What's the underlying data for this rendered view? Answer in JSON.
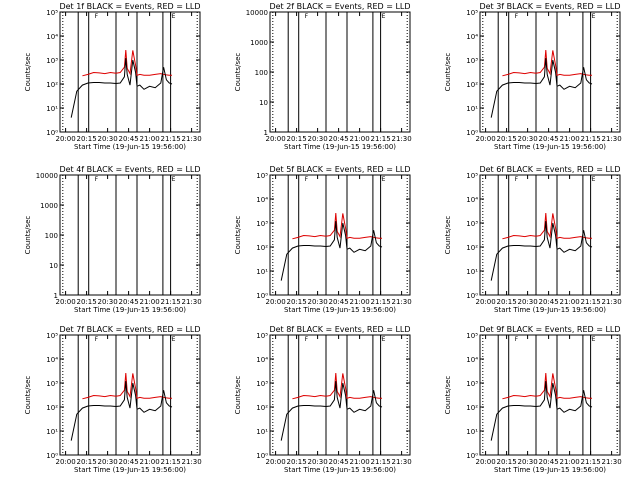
{
  "shared": {
    "x_tick_labels": [
      "20:00",
      "20:15",
      "20:30",
      "20:45",
      "21:00",
      "21:15",
      "21:30"
    ],
    "x_label": "Start Time (19-Jun-15 19:56:00)",
    "y_label": "Counts/sec",
    "line_colors": {
      "events": "#000000",
      "lld": "#dd0000"
    },
    "vertical_markers_min": [
      13,
      20.5,
      40,
      55,
      73.5,
      79
    ],
    "marker_flags": [
      "F",
      "E"
    ],
    "marker_flag_positions_min": [
      24,
      79
    ]
  },
  "chart_data": [
    {
      "type": "line",
      "title": "Det 1f BLACK = Events, RED = LLD",
      "yscale": "log",
      "ylim": [
        1,
        100000
      ],
      "yticks": [
        "10⁰",
        "10¹",
        "10²",
        "10³",
        "10⁴",
        "10⁵"
      ],
      "xlim": [
        0,
        100
      ],
      "x_min": [
        0,
        4,
        8,
        12,
        16,
        20,
        24,
        28,
        32,
        36,
        40,
        43,
        46,
        47,
        48,
        50,
        52,
        54,
        55,
        57,
        60,
        64,
        68,
        72,
        74,
        76,
        78,
        80,
        84
      ],
      "events": [
        null,
        null,
        4,
        50,
        90,
        110,
        115,
        115,
        110,
        110,
        105,
        110,
        200,
        1200,
        250,
        90,
        1000,
        300,
        80,
        90,
        60,
        80,
        70,
        110,
        500,
        150,
        110,
        100,
        null
      ],
      "lld": [
        null,
        null,
        null,
        null,
        220,
        250,
        300,
        290,
        270,
        300,
        280,
        300,
        500,
        2600,
        450,
        270,
        2500,
        600,
        230,
        250,
        230,
        230,
        250,
        270,
        250,
        240,
        230,
        230,
        null
      ]
    },
    {
      "type": "line",
      "title": "Det 2f BLACK = Events, RED = LLD",
      "yscale": "log",
      "ylim": [
        1,
        10000
      ],
      "yticks": [
        "1",
        "10",
        "100",
        "1000",
        "10000"
      ],
      "xlim": [
        0,
        100
      ],
      "x_min": [
        0,
        4,
        8,
        12,
        16,
        20,
        24,
        28,
        32,
        36,
        40,
        44,
        48,
        52,
        56,
        60,
        64,
        68,
        72,
        76,
        80,
        84
      ],
      "events": [
        null,
        null,
        null,
        null,
        null,
        null,
        null,
        null,
        null,
        null,
        null,
        null,
        null,
        null,
        null,
        null,
        null,
        null,
        null,
        null,
        null,
        null
      ],
      "lld": [
        null,
        null,
        null,
        null,
        null,
        null,
        null,
        null,
        null,
        null,
        null,
        null,
        null,
        null,
        null,
        null,
        null,
        null,
        null,
        null,
        null,
        null
      ]
    },
    {
      "type": "line",
      "title": "Det 3f BLACK = Events, RED = LLD",
      "yscale": "log",
      "ylim": [
        1,
        100000
      ],
      "yticks": [
        "10⁰",
        "10¹",
        "10²",
        "10³",
        "10⁴",
        "10⁵"
      ],
      "xlim": [
        0,
        100
      ],
      "x_min": [
        0,
        4,
        8,
        12,
        16,
        20,
        24,
        28,
        32,
        36,
        40,
        43,
        46,
        47,
        48,
        50,
        52,
        54,
        55,
        57,
        60,
        64,
        68,
        72,
        74,
        76,
        78,
        80,
        84
      ],
      "events": [
        null,
        null,
        4,
        50,
        90,
        110,
        115,
        115,
        110,
        110,
        105,
        110,
        200,
        1200,
        250,
        90,
        1000,
        300,
        80,
        90,
        60,
        80,
        70,
        110,
        500,
        150,
        110,
        100,
        null
      ],
      "lld": [
        null,
        null,
        null,
        null,
        220,
        250,
        300,
        290,
        270,
        300,
        280,
        300,
        500,
        2600,
        450,
        270,
        2500,
        600,
        230,
        250,
        230,
        230,
        250,
        270,
        250,
        240,
        230,
        230,
        null
      ]
    },
    {
      "type": "line",
      "title": "Det 4f BLACK = Events, RED = LLD",
      "yscale": "log",
      "ylim": [
        1,
        10000
      ],
      "yticks": [
        "1",
        "10",
        "100",
        "1000",
        "10000"
      ],
      "xlim": [
        0,
        100
      ],
      "x_min": [
        0,
        4,
        8,
        12,
        16,
        20,
        24,
        28,
        32,
        36,
        40,
        44,
        48,
        52,
        56,
        60,
        64,
        68,
        72,
        76,
        80,
        84
      ],
      "events": [
        null,
        null,
        null,
        null,
        null,
        null,
        null,
        null,
        null,
        null,
        null,
        null,
        null,
        null,
        null,
        null,
        null,
        null,
        null,
        null,
        null,
        null
      ],
      "lld": [
        null,
        null,
        null,
        null,
        null,
        null,
        null,
        null,
        null,
        null,
        null,
        null,
        null,
        null,
        null,
        null,
        null,
        null,
        null,
        null,
        null,
        null
      ]
    },
    {
      "type": "line",
      "title": "Det 5f BLACK = Events, RED = LLD",
      "yscale": "log",
      "ylim": [
        1,
        100000
      ],
      "yticks": [
        "10⁰",
        "10¹",
        "10²",
        "10³",
        "10⁴",
        "10⁵"
      ],
      "xlim": [
        0,
        100
      ],
      "x_min": [
        0,
        4,
        8,
        12,
        16,
        20,
        24,
        28,
        32,
        36,
        40,
        43,
        46,
        47,
        48,
        50,
        52,
        54,
        55,
        57,
        60,
        64,
        68,
        72,
        74,
        76,
        78,
        80,
        84
      ],
      "events": [
        null,
        null,
        4,
        50,
        90,
        110,
        115,
        115,
        110,
        110,
        105,
        110,
        200,
        1200,
        250,
        90,
        1000,
        300,
        80,
        90,
        60,
        80,
        70,
        110,
        500,
        150,
        110,
        100,
        null
      ],
      "lld": [
        null,
        null,
        null,
        null,
        220,
        250,
        300,
        290,
        270,
        300,
        280,
        300,
        500,
        2600,
        450,
        270,
        2500,
        600,
        230,
        250,
        230,
        230,
        250,
        270,
        250,
        240,
        230,
        230,
        null
      ]
    },
    {
      "type": "line",
      "title": "Det 6f BLACK = Events, RED = LLD",
      "yscale": "log",
      "ylim": [
        1,
        100000
      ],
      "yticks": [
        "10⁰",
        "10¹",
        "10²",
        "10³",
        "10⁴",
        "10⁵"
      ],
      "xlim": [
        0,
        100
      ],
      "x_min": [
        0,
        4,
        8,
        12,
        16,
        20,
        24,
        28,
        32,
        36,
        40,
        43,
        46,
        47,
        48,
        50,
        52,
        54,
        55,
        57,
        60,
        64,
        68,
        72,
        74,
        76,
        78,
        80,
        84
      ],
      "events": [
        null,
        null,
        4,
        50,
        90,
        110,
        115,
        115,
        110,
        110,
        105,
        110,
        200,
        1200,
        250,
        90,
        1000,
        300,
        80,
        90,
        60,
        80,
        70,
        110,
        500,
        150,
        110,
        100,
        null
      ],
      "lld": [
        null,
        null,
        null,
        null,
        220,
        250,
        300,
        290,
        270,
        300,
        280,
        300,
        500,
        2600,
        450,
        270,
        2500,
        600,
        230,
        250,
        230,
        230,
        250,
        270,
        250,
        240,
        230,
        230,
        null
      ]
    },
    {
      "type": "line",
      "title": "Det 7f BLACK = Events, RED = LLD",
      "yscale": "log",
      "ylim": [
        1,
        100000
      ],
      "yticks": [
        "10⁰",
        "10¹",
        "10²",
        "10³",
        "10⁴",
        "10⁵"
      ],
      "xlim": [
        0,
        100
      ],
      "x_min": [
        0,
        4,
        8,
        12,
        16,
        20,
        24,
        28,
        32,
        36,
        40,
        43,
        46,
        47,
        48,
        50,
        52,
        54,
        55,
        57,
        60,
        64,
        68,
        72,
        74,
        76,
        78,
        80,
        84
      ],
      "events": [
        null,
        null,
        4,
        50,
        90,
        110,
        115,
        115,
        110,
        110,
        105,
        110,
        200,
        1200,
        250,
        90,
        1000,
        300,
        80,
        90,
        60,
        80,
        70,
        110,
        500,
        150,
        110,
        100,
        null
      ],
      "lld": [
        null,
        null,
        null,
        null,
        220,
        250,
        300,
        290,
        270,
        300,
        280,
        300,
        500,
        2600,
        450,
        270,
        2500,
        600,
        230,
        250,
        230,
        230,
        250,
        270,
        250,
        240,
        230,
        230,
        null
      ]
    },
    {
      "type": "line",
      "title": "Det 8f BLACK = Events, RED = LLD",
      "yscale": "log",
      "ylim": [
        1,
        100000
      ],
      "yticks": [
        "10⁰",
        "10¹",
        "10²",
        "10³",
        "10⁴",
        "10⁵"
      ],
      "xlim": [
        0,
        100
      ],
      "x_min": [
        0,
        4,
        8,
        12,
        16,
        20,
        24,
        28,
        32,
        36,
        40,
        43,
        46,
        47,
        48,
        50,
        52,
        54,
        55,
        57,
        60,
        64,
        68,
        72,
        74,
        76,
        78,
        80,
        84
      ],
      "events": [
        null,
        null,
        4,
        50,
        90,
        110,
        115,
        115,
        110,
        110,
        105,
        110,
        200,
        1200,
        250,
        90,
        1000,
        300,
        80,
        90,
        60,
        80,
        70,
        110,
        500,
        150,
        110,
        100,
        null
      ],
      "lld": [
        null,
        null,
        null,
        null,
        220,
        250,
        300,
        290,
        270,
        300,
        280,
        300,
        500,
        2600,
        450,
        270,
        2500,
        600,
        230,
        250,
        230,
        230,
        250,
        270,
        250,
        240,
        230,
        230,
        null
      ]
    },
    {
      "type": "line",
      "title": "Det 9f BLACK = Events, RED = LLD",
      "yscale": "log",
      "ylim": [
        1,
        100000
      ],
      "yticks": [
        "10⁰",
        "10¹",
        "10²",
        "10³",
        "10⁴",
        "10⁵"
      ],
      "xlim": [
        0,
        100
      ],
      "x_min": [
        0,
        4,
        8,
        12,
        16,
        20,
        24,
        28,
        32,
        36,
        40,
        43,
        46,
        47,
        48,
        50,
        52,
        54,
        55,
        57,
        60,
        64,
        68,
        72,
        74,
        76,
        78,
        80,
        84
      ],
      "events": [
        null,
        null,
        4,
        50,
        90,
        110,
        115,
        115,
        110,
        110,
        105,
        110,
        200,
        1200,
        250,
        90,
        1000,
        300,
        80,
        90,
        60,
        80,
        70,
        110,
        500,
        150,
        110,
        100,
        null
      ],
      "lld": [
        null,
        null,
        null,
        null,
        220,
        250,
        300,
        290,
        270,
        300,
        280,
        300,
        500,
        2600,
        450,
        270,
        2500,
        600,
        230,
        250,
        230,
        230,
        250,
        270,
        250,
        240,
        230,
        230,
        null
      ]
    }
  ]
}
